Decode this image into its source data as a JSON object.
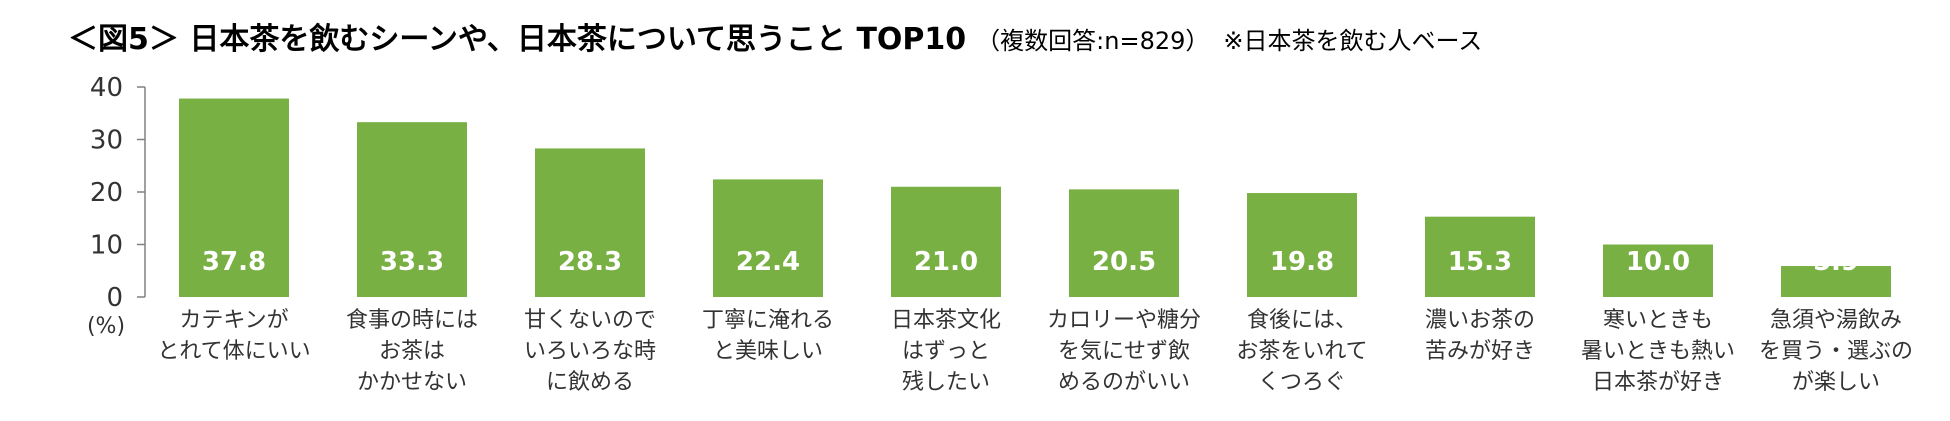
{
  "chart_data": {
    "type": "bar",
    "title": "＜図5＞ 日本茶を飲むシーンや、日本茶について思うこと TOP10",
    "subtitle": "（複数回答:n=829）",
    "note": "※日本茶を飲む人ベース",
    "ylabel": "(%)",
    "ylim": [
      0,
      40
    ],
    "yticks": [
      0,
      10,
      20,
      30,
      40
    ],
    "grid": false,
    "bar_color": "#78b043",
    "value_label_color": "#ffffff",
    "categories": [
      [
        "カテキンが",
        "とれて体にいい"
      ],
      [
        "食事の時には",
        "お茶は",
        "かかせない"
      ],
      [
        "甘くないので",
        "いろいろな時",
        "に飲める"
      ],
      [
        "丁寧に淹れる",
        "と美味しい"
      ],
      [
        "日本茶文化",
        "はずっと",
        "残したい"
      ],
      [
        "カロリーや糖分",
        "を気にせず飲",
        "めるのがいい"
      ],
      [
        "食後には、",
        "お茶をいれて",
        "くつろぐ"
      ],
      [
        "濃いお茶の",
        "苦みが好き"
      ],
      [
        "寒いときも",
        "暑いときも熱い",
        "日本茶が好き"
      ],
      [
        "急須や湯飲み",
        "を買う・選ぶの",
        "が楽しい"
      ]
    ],
    "values": [
      37.8,
      33.3,
      28.3,
      22.4,
      21.0,
      20.5,
      19.8,
      15.3,
      10.0,
      5.9
    ],
    "value_labels": [
      "37.8",
      "33.3",
      "28.3",
      "22.4",
      "21.0",
      "20.5",
      "19.8",
      "15.3",
      "10.0",
      "5.9"
    ]
  }
}
